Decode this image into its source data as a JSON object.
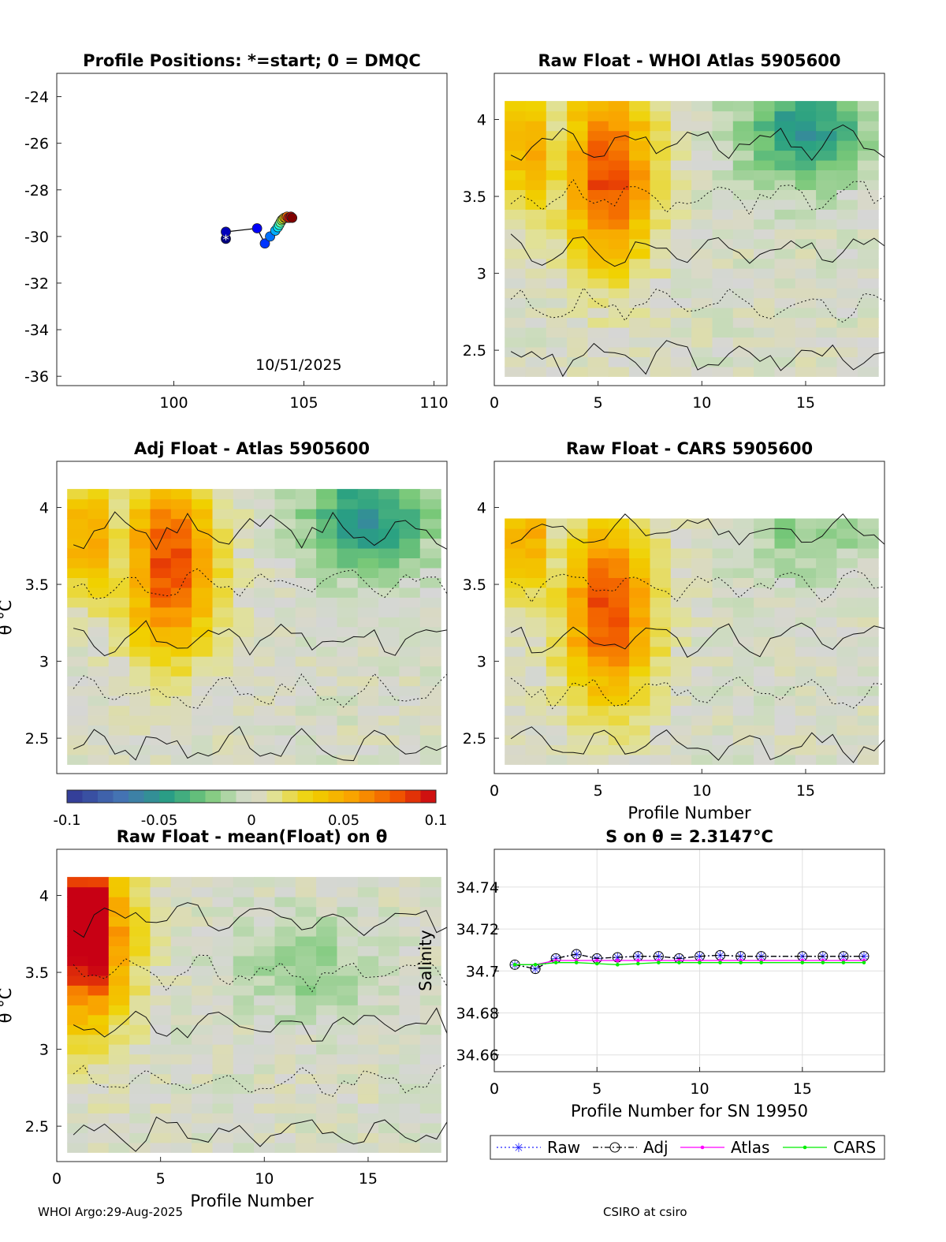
{
  "footer": {
    "left": "WHOI Argo:29-Aug-2025",
    "right": "CSIRO at csiro"
  },
  "colors": {
    "raw": "#2222ff",
    "adj": "#000000",
    "atlas": "#ff00ff",
    "cars": "#00ee00",
    "grid_fill": "#d6d6d6"
  },
  "chart_data": [
    {
      "type": "scatter",
      "name": "positions",
      "title": "Profile Positions: *=start; 0 = DMQC",
      "annotation": "10/51/2025",
      "xlim": [
        95.5,
        110.5
      ],
      "ylim": [
        -36.4,
        -23
      ],
      "xticks": [
        100,
        105,
        110
      ],
      "xtick_labels": [
        "100",
        "105",
        "110"
      ],
      "yticks": [
        -24,
        -26,
        -28,
        -30,
        -32,
        -34,
        -36
      ],
      "ytick_labels": [
        "-24",
        "-26",
        "-28",
        "-30",
        "-32",
        "-34",
        "-36"
      ],
      "x": [
        102.0,
        102.0,
        103.2,
        103.5,
        103.7,
        103.9,
        104.0,
        104.05,
        104.1,
        104.15,
        104.2,
        104.25,
        104.3,
        104.35,
        104.4,
        104.45,
        104.5,
        104.55
      ],
      "y": [
        -30.1,
        -29.8,
        -29.65,
        -30.3,
        -30.0,
        -29.75,
        -29.6,
        -29.5,
        -29.4,
        -29.3,
        -29.25,
        -29.2,
        -29.2,
        -29.15,
        -29.2,
        -29.2,
        -29.15,
        -29.2
      ]
    },
    {
      "type": "heatmap",
      "name": "raw-whoi",
      "title": "Raw Float - WHOI Atlas  5905600",
      "xlabel": "",
      "ylabel": "",
      "xticks": [
        0,
        5,
        10,
        15
      ],
      "xtick_labels": [
        "0",
        "5",
        "10",
        "15"
      ],
      "yticks": [
        2.5,
        3,
        3.5,
        4
      ],
      "ytick_labels": [
        "2.5",
        "3",
        "3.5",
        "4"
      ]
    },
    {
      "type": "heatmap",
      "name": "adj-atlas",
      "title": "Adj Float - Atlas  5905600",
      "xlabel": "",
      "ylabel": "θ °C",
      "xticks": [],
      "xtick_labels": [],
      "yticks": [
        2.5,
        3,
        3.5,
        4
      ],
      "ytick_labels": [
        "2.5",
        "3",
        "3.5",
        "4"
      ]
    },
    {
      "type": "heatmap",
      "name": "raw-cars",
      "title": "Raw Float - CARS  5905600",
      "xlabel": "Profile Number",
      "ylabel": "",
      "xticks": [
        0,
        5,
        10,
        15
      ],
      "xtick_labels": [
        "0",
        "5",
        "10",
        "15"
      ],
      "yticks": [
        2.5,
        3,
        3.5,
        4
      ],
      "ytick_labels": [
        "2.5",
        "3",
        "3.5",
        "4"
      ]
    },
    {
      "type": "heatmap",
      "name": "raw-mean",
      "title": "Raw Float - mean(Float) on θ",
      "xlabel": "Profile Number",
      "ylabel": "θ °C",
      "xticks": [
        0,
        5,
        10,
        15
      ],
      "xtick_labels": [
        "0",
        "5",
        "10",
        "15"
      ],
      "yticks": [
        2.5,
        3,
        3.5,
        4
      ],
      "ytick_labels": [
        "2.5",
        "3",
        "3.5",
        "4"
      ]
    },
    {
      "type": "colorbar",
      "name": "colorbar",
      "range": [
        -0.1,
        0.1
      ],
      "ticks": [
        -0.1,
        -0.05,
        0,
        0.05,
        0.1
      ],
      "tick_labels": [
        "-0.1",
        "-0.05",
        "0",
        "0.05",
        "0.1"
      ]
    },
    {
      "type": "line",
      "name": "salinity",
      "title": "S on θ = 2.3147°C",
      "xlabel": "Profile Number for SN 19950",
      "ylabel": "Salinity",
      "xlim": [
        0,
        19
      ],
      "ylim": [
        34.652,
        34.758
      ],
      "xticks": [
        0,
        5,
        10,
        15
      ],
      "xtick_labels": [
        "0",
        "5",
        "10",
        "15"
      ],
      "yticks": [
        34.66,
        34.68,
        34.7,
        34.72,
        34.74
      ],
      "ytick_labels": [
        "34.66",
        "34.68",
        "34.7",
        "34.72",
        "34.74"
      ],
      "x": [
        1,
        2,
        3,
        4,
        5,
        6,
        7,
        8,
        9,
        10,
        11,
        12,
        13,
        15,
        16,
        17,
        18
      ],
      "series": [
        {
          "name": "Raw",
          "values": [
            34.703,
            34.701,
            34.706,
            34.708,
            34.706,
            34.7065,
            34.707,
            34.707,
            34.706,
            34.707,
            34.7075,
            34.707,
            34.707,
            34.707,
            34.707,
            34.707,
            34.707
          ]
        },
        {
          "name": "Adj",
          "values": [
            34.703,
            34.701,
            34.706,
            34.708,
            34.706,
            34.7065,
            34.707,
            34.707,
            34.706,
            34.707,
            34.7075,
            34.707,
            34.707,
            34.707,
            34.707,
            34.707,
            34.707
          ]
        },
        {
          "name": "Atlas",
          "values": [
            34.703,
            34.703,
            34.705,
            34.705,
            34.705,
            34.705,
            34.705,
            34.705,
            34.705,
            34.705,
            34.705,
            34.705,
            34.705,
            34.705,
            34.705,
            34.705,
            34.705
          ]
        },
        {
          "name": "CARS",
          "values": [
            34.703,
            34.703,
            34.704,
            34.704,
            34.7035,
            34.703,
            34.7035,
            34.704,
            34.704,
            34.704,
            34.704,
            34.704,
            34.704,
            34.704,
            34.704,
            34.704,
            34.704
          ]
        }
      ],
      "legend": [
        "Raw",
        "Adj",
        "Atlas",
        "CARS"
      ]
    }
  ]
}
